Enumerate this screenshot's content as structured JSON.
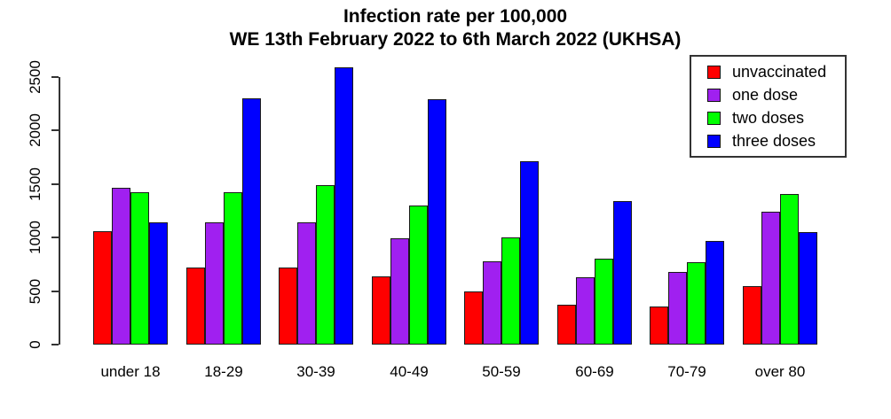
{
  "chart_data": {
    "type": "bar",
    "title": "Infection rate per 100,000",
    "subtitle": "WE 13th February 2022 to 6th March 2022 (UKHSA)",
    "categories": [
      "under 18",
      "18-29",
      "30-39",
      "40-49",
      "50-59",
      "60-69",
      "70-79",
      "over 80"
    ],
    "series": [
      {
        "name": "unvaccinated",
        "color": "#FF0000",
        "values": [
          1060,
          720,
          720,
          635,
          495,
          370,
          355,
          545
        ]
      },
      {
        "name": "one dose",
        "color": "#A020F0",
        "values": [
          1465,
          1145,
          1140,
          995,
          775,
          625,
          675,
          1245
        ]
      },
      {
        "name": "two doses",
        "color": "#00FF00",
        "values": [
          1425,
          1420,
          1490,
          1300,
          1005,
          805,
          770,
          1410
        ]
      },
      {
        "name": "three doses",
        "color": "#0000FF",
        "values": [
          1140,
          2300,
          2590,
          2290,
          1715,
          1345,
          965,
          1050
        ]
      }
    ],
    "yticks": [
      0,
      500,
      1000,
      1500,
      2000,
      2500
    ],
    "ylim": [
      0,
      2500
    ],
    "xlabel": "",
    "ylabel": "",
    "grid": false,
    "legend_position": "top-right",
    "axis_color": "#333333",
    "text_color": "#000000"
  }
}
